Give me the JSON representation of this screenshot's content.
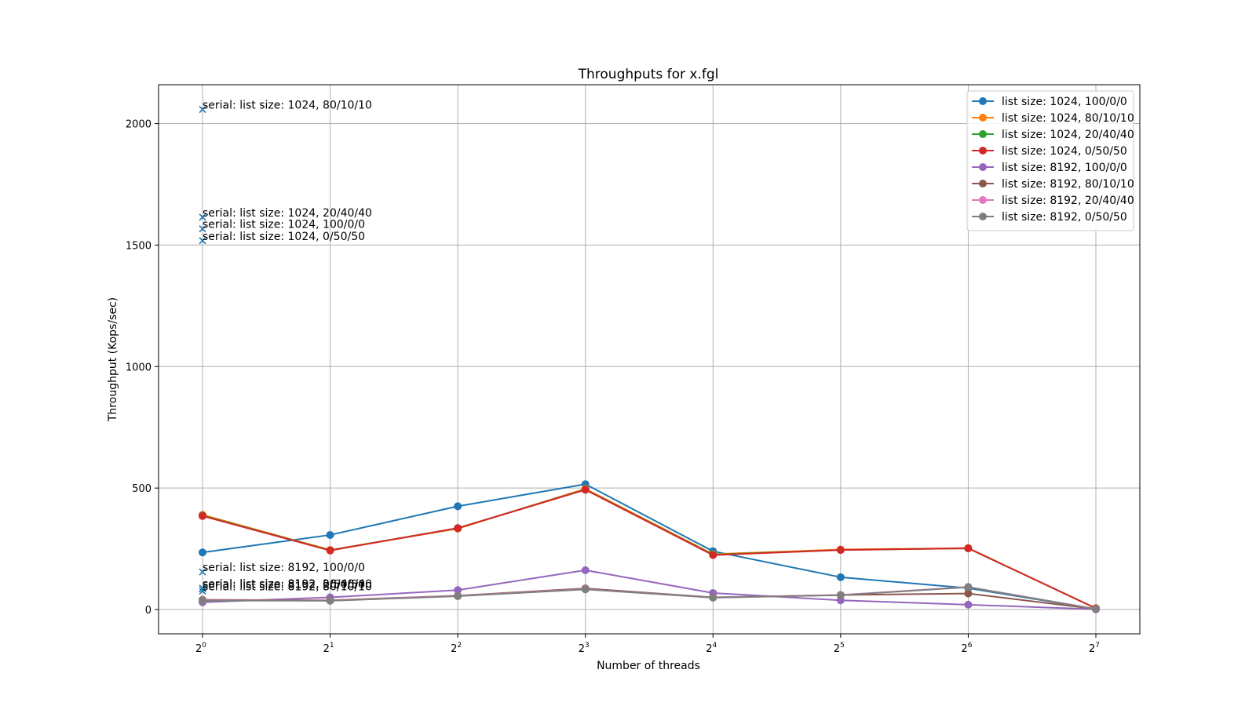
{
  "chart_data": {
    "type": "line",
    "title": "Throughputs for x.fgl",
    "xlabel": "Number of threads",
    "ylabel": "Throughput (Kops/sec)",
    "x_scale": "log2",
    "x": [
      1,
      2,
      4,
      8,
      16,
      32,
      64,
      128
    ],
    "x_tick_base": "2",
    "x_tick_exponents": [
      "0",
      "1",
      "2",
      "3",
      "4",
      "5",
      "6",
      "7"
    ],
    "y_ticks": [
      0,
      500,
      1000,
      1500,
      2000
    ],
    "ylim": [
      -100,
      2160
    ],
    "grid": true,
    "legend_position": "top-right",
    "series": [
      {
        "name": "list size: 1024, 100/0/0",
        "color": "#1f77b4",
        "values": [
          235,
          307,
          425,
          516,
          240,
          133,
          88,
          2
        ]
      },
      {
        "name": "list size: 1024, 80/10/10",
        "color": "#ff7f0e",
        "values": [
          390,
          245,
          333,
          497,
          228,
          247,
          253,
          5
        ]
      },
      {
        "name": "list size: 1024, 20/40/40",
        "color": "#2ca02c",
        "values": [
          387,
          244,
          335,
          494,
          226,
          245,
          252,
          5
        ]
      },
      {
        "name": "list size: 1024, 0/50/50",
        "color": "#d62728",
        "values": [
          385,
          243,
          335,
          493,
          224,
          245,
          252,
          5
        ]
      },
      {
        "name": "list size: 8192, 100/0/0",
        "color": "#9467bd",
        "values": [
          30,
          50,
          80,
          162,
          68,
          38,
          20,
          1
        ]
      },
      {
        "name": "list size: 8192, 80/10/10",
        "color": "#8c564b",
        "values": [
          40,
          38,
          57,
          87,
          50,
          60,
          66,
          2
        ]
      },
      {
        "name": "list size: 8192, 20/40/40",
        "color": "#e377c2",
        "values": [
          38,
          37,
          56,
          84,
          49,
          60,
          93,
          2
        ]
      },
      {
        "name": "list size: 8192, 0/50/50",
        "color": "#7f7f7f",
        "values": [
          37,
          36,
          55,
          83,
          49,
          59,
          92,
          2
        ]
      }
    ],
    "serial_points": [
      {
        "label": "serial: list size: 1024, 80/10/10",
        "x": 1,
        "y": 2058
      },
      {
        "label": "serial: list size: 1024, 20/40/40",
        "x": 1,
        "y": 1615
      },
      {
        "label": "serial: list size: 1024, 100/0/0",
        "x": 1,
        "y": 1567
      },
      {
        "label": "serial: list size: 1024, 0/50/50",
        "x": 1,
        "y": 1518
      },
      {
        "label": "serial: list size: 8192, 100/0/0",
        "x": 1,
        "y": 155
      },
      {
        "label": "serial: list size: 8192, 20/40/40",
        "x": 1,
        "y": 88
      },
      {
        "label": "serial: list size: 8192, 0/50/50",
        "x": 1,
        "y": 86
      },
      {
        "label": "serial: list size: 8192, 80/10/10",
        "x": 1,
        "y": 76
      }
    ],
    "serial_marker_color": "#1f77b4"
  }
}
